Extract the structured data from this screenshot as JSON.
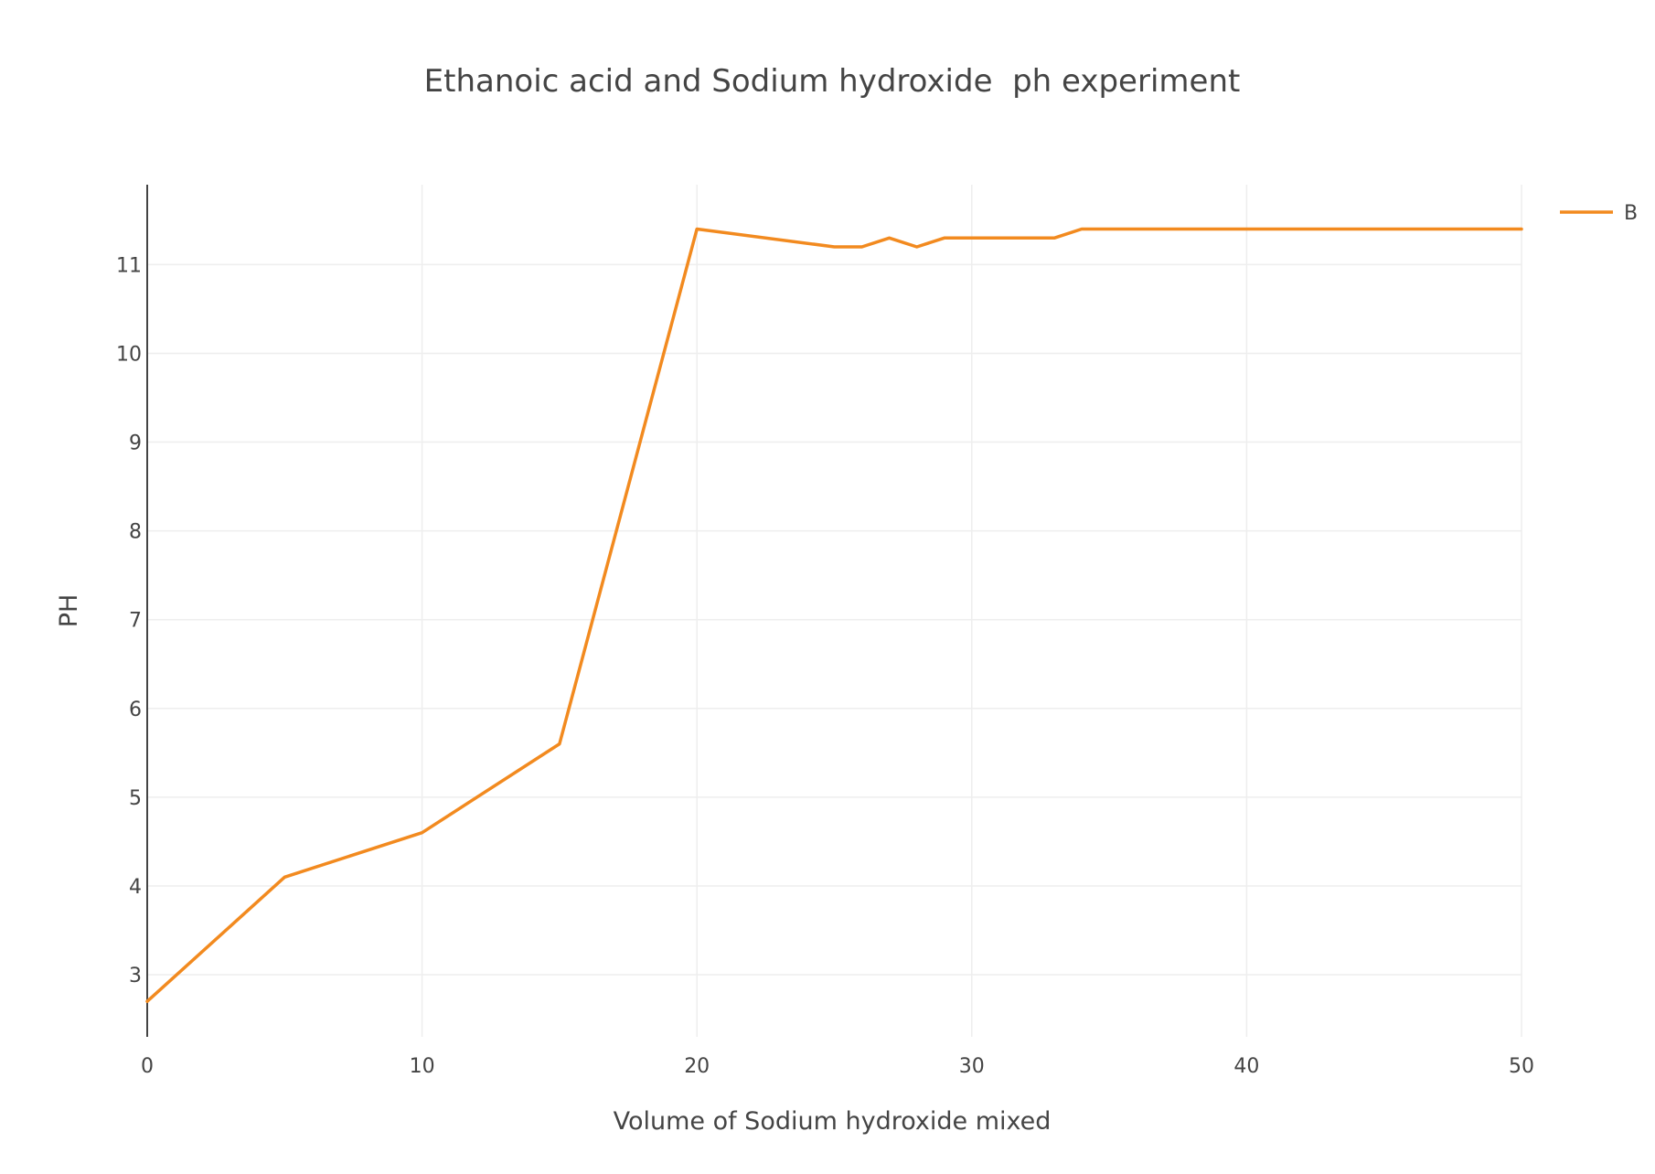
{
  "chart_data": {
    "type": "line",
    "title": "Ethanoic acid and Sodium hydroxide  ph experiment",
    "xlabel": "Volume of Sodium hydroxide mixed",
    "ylabel": "PH",
    "xlim": [
      0,
      50
    ],
    "ylim": [
      2.3,
      11.9
    ],
    "x_ticks": [
      0,
      10,
      20,
      30,
      40,
      50
    ],
    "y_ticks": [
      3,
      4,
      5,
      6,
      7,
      8,
      9,
      10,
      11
    ],
    "grid": true,
    "legend_position": "top-right",
    "series": [
      {
        "name": "B",
        "color": "#f28a1f",
        "x": [
          0,
          5,
          10,
          15,
          20,
          25,
          26,
          27,
          28,
          29,
          30,
          31,
          32,
          33,
          34,
          35,
          40,
          45,
          50
        ],
        "y": [
          2.7,
          4.1,
          4.6,
          5.6,
          11.4,
          11.2,
          11.2,
          11.3,
          11.2,
          11.3,
          11.3,
          11.3,
          11.3,
          11.3,
          11.4,
          11.4,
          11.4,
          11.4,
          11.4
        ]
      }
    ]
  }
}
